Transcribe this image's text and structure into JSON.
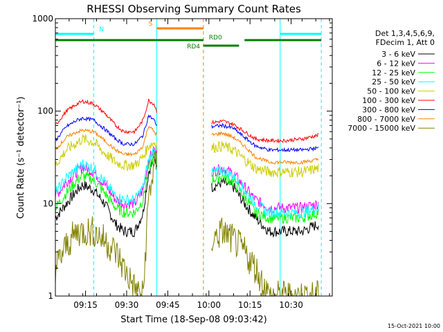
{
  "chart_data": {
    "type": "line",
    "title": "RHESSI Observing Summary Count Rates",
    "xlabel": "Start Time (18-Sep-08 09:03:42)",
    "ylabel": "Count Rate (s⁻¹ detector⁻¹)",
    "yscale": "log",
    "ylim": [
      1,
      1000
    ],
    "xlim": [
      "09:04",
      "10:45"
    ],
    "x_ticks": [
      "09:15",
      "09:30",
      "09:45",
      "10:00",
      "10:15",
      "10:30"
    ],
    "y_ticks": [
      "1",
      "10",
      "100",
      "1000"
    ],
    "timestamp": "15-Oct-2021 10:00",
    "legend": {
      "position": "right",
      "header": [
        "Det 1,3,4,5,6,9,",
        "FDecim 1, Att 0"
      ]
    },
    "series": [
      {
        "name": "3 - 6 keV",
        "color": "#000000",
        "x": [
          "09:04",
          "09:08",
          "09:12",
          "09:14",
          "09:18",
          "09:22",
          "09:26",
          "09:29",
          "09:33",
          "09:36",
          "09:38",
          "09:40",
          "09:41",
          "10:01",
          "10:05",
          "10:09",
          "10:13",
          "10:17",
          "10:22",
          "10:28",
          "10:34",
          "10:40"
        ],
        "y": [
          7,
          10,
          14,
          16,
          14,
          10,
          6,
          5,
          5,
          8,
          22,
          30,
          28,
          15,
          17,
          15,
          10,
          7,
          5,
          5,
          5,
          6
        ]
      },
      {
        "name": "6 - 12 keV",
        "color": "#ff00ff",
        "x": [
          "09:04",
          "09:08",
          "09:12",
          "09:14",
          "09:18",
          "09:22",
          "09:26",
          "09:29",
          "09:33",
          "09:36",
          "09:38",
          "09:40",
          "09:41",
          "10:01",
          "10:05",
          "10:09",
          "10:13",
          "10:17",
          "10:22",
          "10:28",
          "10:34",
          "10:40"
        ],
        "y": [
          12,
          17,
          22,
          25,
          22,
          16,
          11,
          10,
          10,
          14,
          30,
          38,
          35,
          22,
          24,
          21,
          15,
          11,
          9,
          9,
          9,
          10
        ]
      },
      {
        "name": "12 - 25 keV",
        "color": "#00ff00",
        "x": [
          "09:04",
          "09:08",
          "09:12",
          "09:14",
          "09:18",
          "09:22",
          "09:26",
          "09:29",
          "09:33",
          "09:36",
          "09:38",
          "09:40",
          "09:41",
          "10:01",
          "10:05",
          "10:09",
          "10:13",
          "10:17",
          "10:22",
          "10:28",
          "10:34",
          "10:40"
        ],
        "y": [
          9,
          13,
          18,
          20,
          18,
          13,
          9,
          8,
          8,
          11,
          24,
          32,
          30,
          18,
          20,
          17,
          12,
          8,
          7,
          7,
          7,
          8
        ]
      },
      {
        "name": "25 - 50 keV",
        "color": "#00ffff",
        "x": [
          "09:04",
          "09:08",
          "09:12",
          "09:14",
          "09:18",
          "09:22",
          "09:26",
          "09:29",
          "09:33",
          "09:36",
          "09:38",
          "09:40",
          "09:41",
          "10:01",
          "10:05",
          "10:09",
          "10:13",
          "10:17",
          "10:22",
          "10:28",
          "10:34",
          "10:40"
        ],
        "y": [
          13,
          19,
          24,
          27,
          24,
          17,
          12,
          11,
          11,
          15,
          30,
          38,
          36,
          21,
          23,
          20,
          14,
          10,
          8,
          8,
          8,
          9
        ]
      },
      {
        "name": "50 - 100 keV",
        "color": "#cccc00",
        "x": [
          "09:04",
          "09:08",
          "09:12",
          "09:14",
          "09:18",
          "09:22",
          "09:26",
          "09:29",
          "09:33",
          "09:36",
          "09:38",
          "09:40",
          "09:41",
          "10:01",
          "10:05",
          "10:09",
          "10:13",
          "10:17",
          "10:22",
          "10:28",
          "10:34",
          "10:40"
        ],
        "y": [
          26,
          38,
          46,
          50,
          46,
          35,
          28,
          26,
          26,
          32,
          42,
          46,
          44,
          40,
          42,
          38,
          30,
          24,
          22,
          22,
          22,
          24
        ]
      },
      {
        "name": "100 - 300 keV",
        "color": "#ff0000",
        "x": [
          "09:04",
          "09:08",
          "09:12",
          "09:14",
          "09:18",
          "09:22",
          "09:26",
          "09:29",
          "09:33",
          "09:36",
          "09:38",
          "09:40",
          "09:41",
          "10:01",
          "10:05",
          "10:09",
          "10:13",
          "10:17",
          "10:22",
          "10:28",
          "10:34",
          "10:40"
        ],
        "y": [
          70,
          100,
          120,
          128,
          120,
          95,
          70,
          60,
          60,
          80,
          130,
          120,
          100,
          75,
          78,
          72,
          60,
          50,
          48,
          48,
          50,
          55
        ]
      },
      {
        "name": "300 - 800 keV",
        "color": "#0000ff",
        "x": [
          "09:04",
          "09:08",
          "09:12",
          "09:14",
          "09:18",
          "09:22",
          "09:26",
          "09:29",
          "09:33",
          "09:36",
          "09:38",
          "09:40",
          "09:41",
          "10:01",
          "10:05",
          "10:09",
          "10:13",
          "10:17",
          "10:22",
          "10:28",
          "10:34",
          "10:40"
        ],
        "y": [
          48,
          68,
          80,
          84,
          80,
          64,
          50,
          44,
          44,
          55,
          90,
          80,
          70,
          68,
          70,
          65,
          52,
          42,
          38,
          38,
          38,
          40
        ]
      },
      {
        "name": "800 - 7000 keV",
        "color": "#ff8000",
        "x": [
          "09:04",
          "09:08",
          "09:12",
          "09:14",
          "09:18",
          "09:22",
          "09:26",
          "09:29",
          "09:33",
          "09:36",
          "09:38",
          "09:40",
          "09:41",
          "10:01",
          "10:05",
          "10:09",
          "10:13",
          "10:17",
          "10:22",
          "10:28",
          "10:34",
          "10:40"
        ],
        "y": [
          38,
          52,
          60,
          62,
          60,
          48,
          38,
          34,
          34,
          42,
          70,
          60,
          55,
          55,
          58,
          52,
          42,
          32,
          28,
          28,
          28,
          30
        ]
      },
      {
        "name": "7000 - 15000 keV",
        "color": "#808000",
        "x": [
          "09:04",
          "09:08",
          "09:12",
          "09:14",
          "09:18",
          "09:22",
          "09:26",
          "09:29",
          "09:33",
          "09:36",
          "09:38",
          "09:40",
          "09:41",
          "10:01",
          "10:05",
          "10:09",
          "10:13",
          "10:17",
          "10:22",
          "10:28",
          "10:34",
          "10:40"
        ],
        "y": [
          2,
          3.5,
          5,
          5,
          5,
          4,
          3,
          2,
          1.2,
          1,
          12,
          24,
          28,
          4,
          5,
          4,
          3,
          2,
          1,
          1,
          1,
          1
        ]
      }
    ],
    "annotations": [
      {
        "label": "N",
        "color": "#00ffff",
        "start": "09:04",
        "end": "09:18"
      },
      {
        "label": "",
        "color": "#00ffff",
        "start": "10:26",
        "end": "10:41"
      },
      {
        "label": "S",
        "color": "#ff8000",
        "start": "09:41",
        "end": "09:58"
      },
      {
        "label": "",
        "color": "#008000",
        "start": "09:04",
        "end": "09:58"
      },
      {
        "label": "RD4",
        "color": "#008000",
        "start": "09:58",
        "end": "10:11"
      },
      {
        "label": "RD0",
        "color": "#008000",
        "start": "10:13",
        "end": "10:41"
      }
    ],
    "vlines": [
      {
        "time": "09:04",
        "color": "#00ffff",
        "style": "solid"
      },
      {
        "time": "09:18",
        "color": "#00ffff",
        "style": "dashed"
      },
      {
        "time": "09:41",
        "color": "#00ffff",
        "style": "solid"
      },
      {
        "time": "09:58",
        "color": "#ff8000",
        "style": "dashed"
      },
      {
        "time": "10:26",
        "color": "#00ffff",
        "style": "solid"
      },
      {
        "time": "10:41",
        "color": "#00ffff",
        "style": "dashed"
      }
    ]
  }
}
